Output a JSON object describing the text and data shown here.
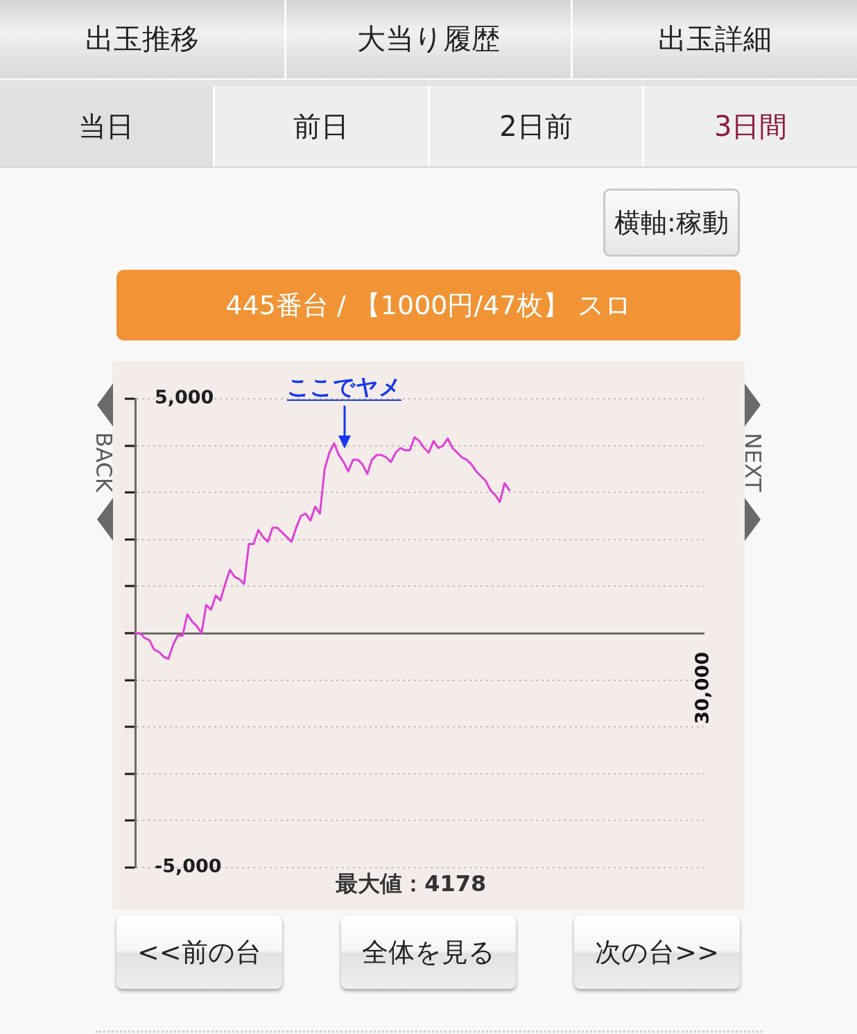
{
  "chart_data": [
    {
      "type": "other",
      "annotations": [
        "出玉推移",
        "大当り履歴",
        "出玉詳細"
      ]
    },
    {
      "type": "other",
      "annotations": [
        "当日",
        "前日",
        "2日前",
        "3日間"
      ]
    },
    {
      "type": "other",
      "annotations": [
        "横軸:稼動"
      ]
    },
    {
      "type": "line",
      "title": "445番台 / 【1000円/47枚】 スロ",
      "categories": [
        null,
        null,
        null,
        null,
        null,
        null,
        null,
        null,
        null,
        null,
        null,
        null,
        null,
        null,
        null,
        null,
        null,
        null,
        null,
        null,
        null,
        null,
        null,
        null,
        null,
        null,
        null,
        null,
        null,
        null,
        null,
        null,
        null,
        null,
        null,
        null,
        null,
        null,
        null,
        null,
        null,
        null,
        null,
        null,
        null,
        null,
        null,
        null,
        null,
        null,
        null,
        null,
        null,
        null,
        null,
        null,
        null,
        null,
        null,
        null,
        null,
        null,
        null,
        null,
        null,
        null,
        null,
        null,
        null,
        null,
        null,
        null,
        null,
        null,
        null,
        null,
        null,
        null,
        null,
        null,
        null,
        null,
        null,
        null,
        null,
        null,
        null,
        null,
        null,
        null,
        null,
        null,
        null,
        null,
        null,
        null,
        null,
        null,
        null,
        null,
        null,
        null,
        null,
        null,
        null,
        null,
        null,
        null,
        null,
        null,
        null,
        null,
        null,
        null,
        null,
        null,
        null,
        null,
        null,
        null,
        "30,000"
      ],
      "values": [
        0,
        0,
        -100,
        -150,
        -350,
        -400,
        -500,
        -550,
        -250,
        -50,
        -50,
        400,
        250,
        150,
        0,
        600,
        500,
        800,
        700,
        1050,
        1350,
        1200,
        1150,
        1050,
        1900,
        1900,
        2200,
        2050,
        1950,
        2250,
        2250,
        2150,
        2050,
        1950,
        2250,
        2500,
        2550,
        2400,
        2700,
        2550,
        3500,
        3850,
        4050,
        3800,
        3650,
        3450,
        3700,
        3700,
        3600,
        3400,
        3700,
        3800,
        3800,
        3750,
        3650,
        3850,
        3950,
        3900,
        3900,
        4178,
        4100,
        3950,
        3850,
        4100,
        3950,
        4000,
        4150,
        3950,
        3850,
        3750,
        3700,
        3600,
        3450,
        3350,
        3250,
        3050,
        2950,
        2800,
        3200,
        3050,
        null,
        null,
        null,
        null,
        null,
        null,
        null,
        null,
        null,
        null,
        null,
        null,
        null,
        null,
        null,
        null,
        null,
        null,
        null,
        null,
        null,
        null,
        null,
        null,
        null,
        null,
        null,
        null,
        null,
        null,
        null,
        null,
        null,
        null,
        null,
        null,
        null,
        null,
        null,
        null,
        null
      ],
      "color": "#e040d8",
      "ylim": [
        -5000,
        5000
      ],
      "yticks": [
        {
          "value": -5000,
          "label": "-5,000"
        },
        {
          "value": -4000,
          "label": null
        },
        {
          "value": -3000,
          "label": null
        },
        {
          "value": -2000,
          "label": null
        },
        {
          "value": -1000,
          "label": null
        },
        {
          "value": 0,
          "label": null
        },
        {
          "value": 1000,
          "label": null
        },
        {
          "value": 2000,
          "label": null
        },
        {
          "value": 3000,
          "label": null
        },
        {
          "value": 4000,
          "label": null
        },
        {
          "value": 5000,
          "label": "5,000"
        }
      ],
      "grid": "y",
      "annotations": [
        "ここでヤメ",
        "BACK",
        "NEXT",
        "最大値：4178"
      ]
    },
    {
      "type": "other",
      "annotations": [
        "<<前の台",
        "全体を見る",
        "次の台>>"
      ]
    }
  ]
}
